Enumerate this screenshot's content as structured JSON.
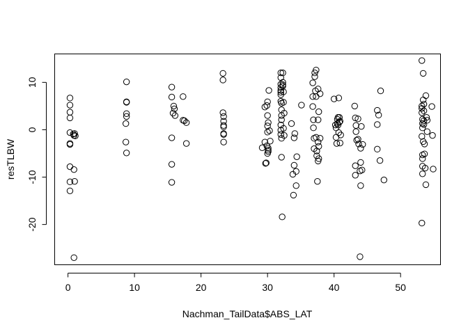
{
  "chart_data": {
    "type": "scatter",
    "title": "",
    "xlabel": "Nachman_TailData$ABS_LAT",
    "ylabel": "resTLBW",
    "xlim": [
      -2,
      56
    ],
    "ylim": [
      -28.5,
      16
    ],
    "xticks": [
      0,
      10,
      20,
      30,
      40,
      50
    ],
    "yticks": [
      -20,
      -10,
      0,
      10
    ],
    "grid": false,
    "legend": "none",
    "marker": "open-circle",
    "points": [
      [
        0.3,
        6.7
      ],
      [
        0.3,
        5.2
      ],
      [
        0.3,
        3.7
      ],
      [
        0.3,
        2.5
      ],
      [
        0.3,
        -0.6
      ],
      [
        0.3,
        -2.9
      ],
      [
        0.3,
        -3.1
      ],
      [
        0.3,
        -7.8
      ],
      [
        0.3,
        -11.0
      ],
      [
        0.3,
        -12.9
      ],
      [
        0.8,
        -0.9
      ],
      [
        0.9,
        -1.2
      ],
      [
        1.0,
        -0.8
      ],
      [
        1.1,
        -1.3
      ],
      [
        0.9,
        -8.4
      ],
      [
        1.0,
        -10.9
      ],
      [
        0.9,
        -27.0
      ],
      [
        8.8,
        10.1
      ],
      [
        8.8,
        5.8
      ],
      [
        8.8,
        5.9
      ],
      [
        8.8,
        3.4
      ],
      [
        8.8,
        2.8
      ],
      [
        8.7,
        1.3
      ],
      [
        8.7,
        -2.6
      ],
      [
        8.8,
        -4.9
      ],
      [
        15.6,
        9.0
      ],
      [
        15.6,
        6.9
      ],
      [
        15.9,
        5.0
      ],
      [
        16.0,
        4.4
      ],
      [
        15.8,
        3.5
      ],
      [
        16.1,
        3.0
      ],
      [
        15.6,
        -1.7
      ],
      [
        15.6,
        -7.3
      ],
      [
        15.6,
        -11.1
      ],
      [
        17.3,
        7.0
      ],
      [
        17.3,
        2.0
      ],
      [
        17.5,
        1.9
      ],
      [
        17.8,
        1.5
      ],
      [
        17.8,
        -2.9
      ],
      [
        23.3,
        11.9
      ],
      [
        23.3,
        10.5
      ],
      [
        23.3,
        3.6
      ],
      [
        23.4,
        2.8
      ],
      [
        23.4,
        1.8
      ],
      [
        23.4,
        0.9
      ],
      [
        23.4,
        0.6
      ],
      [
        23.4,
        -0.8
      ],
      [
        23.4,
        -1.0
      ],
      [
        23.4,
        -2.6
      ],
      [
        29.2,
        -3.8
      ],
      [
        29.6,
        4.8
      ],
      [
        29.6,
        -2.6
      ],
      [
        29.7,
        -7.1
      ],
      [
        29.8,
        -7.0
      ],
      [
        29.9,
        5.1
      ],
      [
        29.9,
        -3.4
      ],
      [
        30.0,
        5.9
      ],
      [
        30.0,
        3.0
      ],
      [
        30.1,
        1.5
      ],
      [
        30.0,
        0.8
      ],
      [
        30.0,
        -0.5
      ],
      [
        30.1,
        -3.9
      ],
      [
        30.1,
        -4.3
      ],
      [
        30.1,
        -4.6
      ],
      [
        30.2,
        8.3
      ],
      [
        30.3,
        -0.2
      ],
      [
        30.4,
        -2.4
      ],
      [
        30.0,
        -5.0
      ],
      [
        32.0,
        12.0
      ],
      [
        32.0,
        11.0
      ],
      [
        32.0,
        9.6
      ],
      [
        32.0,
        8.9
      ],
      [
        32.0,
        8.3
      ],
      [
        32.0,
        7.9
      ],
      [
        32.0,
        7.4
      ],
      [
        32.0,
        6.0
      ],
      [
        32.1,
        5.6
      ],
      [
        32.1,
        4.2
      ],
      [
        32.1,
        3.0
      ],
      [
        32.1,
        2.1
      ],
      [
        32.0,
        1.0
      ],
      [
        32.0,
        -0.1
      ],
      [
        32.0,
        -1.0
      ],
      [
        32.1,
        -1.8
      ],
      [
        32.1,
        -5.8
      ],
      [
        32.2,
        -18.4
      ],
      [
        32.3,
        12.0
      ],
      [
        32.3,
        10.0
      ],
      [
        32.3,
        9.5
      ],
      [
        32.3,
        9.2
      ],
      [
        32.4,
        8.0
      ],
      [
        32.4,
        5.8
      ],
      [
        32.4,
        0.3
      ],
      [
        32.5,
        -1.2
      ],
      [
        32.5,
        3.5
      ],
      [
        33.6,
        1.3
      ],
      [
        33.8,
        -9.4
      ],
      [
        33.9,
        -13.8
      ],
      [
        34.0,
        -7.5
      ],
      [
        34.0,
        -1.7
      ],
      [
        34.1,
        -0.8
      ],
      [
        34.3,
        -8.8
      ],
      [
        34.3,
        -11.8
      ],
      [
        34.4,
        -5.7
      ],
      [
        35.1,
        5.2
      ],
      [
        36.8,
        9.9
      ],
      [
        36.8,
        7.0
      ],
      [
        36.8,
        4.9
      ],
      [
        36.9,
        2.1
      ],
      [
        36.9,
        0.4
      ],
      [
        37.0,
        -1.8
      ],
      [
        37.0,
        -4.0
      ],
      [
        37.1,
        12.0
      ],
      [
        37.1,
        11.2
      ],
      [
        37.2,
        8.2
      ],
      [
        37.3,
        12.6
      ],
      [
        37.3,
        7.0
      ],
      [
        37.3,
        -1.6
      ],
      [
        37.4,
        -4.5
      ],
      [
        37.4,
        -5.5
      ],
      [
        37.5,
        -10.9
      ],
      [
        37.6,
        8.6
      ],
      [
        37.6,
        2.1
      ],
      [
        37.6,
        -2.6
      ],
      [
        37.7,
        3.8
      ],
      [
        37.7,
        -3.5
      ],
      [
        37.7,
        -6.1
      ],
      [
        37.6,
        -6.6
      ],
      [
        37.9,
        7.6
      ],
      [
        37.9,
        -1.8
      ],
      [
        40.0,
        6.5
      ],
      [
        40.2,
        1.0
      ],
      [
        40.3,
        0.4
      ],
      [
        40.3,
        -1.6
      ],
      [
        40.4,
        -2.9
      ],
      [
        40.5,
        1.3
      ],
      [
        40.5,
        2.2
      ],
      [
        40.6,
        2.6
      ],
      [
        40.6,
        1.0
      ],
      [
        40.7,
        6.7
      ],
      [
        40.7,
        -0.6
      ],
      [
        40.8,
        2.6
      ],
      [
        40.8,
        1.6
      ],
      [
        40.9,
        -2.8
      ],
      [
        40.9,
        1.8
      ],
      [
        41.0,
        -1.1
      ],
      [
        43.1,
        5.0
      ],
      [
        43.2,
        2.5
      ],
      [
        43.3,
        0.9
      ],
      [
        43.3,
        -0.4
      ],
      [
        43.4,
        -2.2
      ],
      [
        43.2,
        -7.6
      ],
      [
        43.2,
        -9.6
      ],
      [
        43.6,
        2.3
      ],
      [
        43.6,
        -2.0
      ],
      [
        43.7,
        -3.0
      ],
      [
        43.9,
        -8.7
      ],
      [
        44.0,
        -3.9
      ],
      [
        44.0,
        -6.9
      ],
      [
        44.0,
        -11.8
      ],
      [
        43.9,
        -26.8
      ],
      [
        44.2,
        -8.5
      ],
      [
        44.3,
        -3.1
      ],
      [
        44.1,
        0.7
      ],
      [
        46.5,
        4.1
      ],
      [
        46.5,
        1.1
      ],
      [
        46.5,
        -4.1
      ],
      [
        46.7,
        3.1
      ],
      [
        46.9,
        -6.5
      ],
      [
        47.0,
        8.2
      ],
      [
        47.5,
        -10.6
      ],
      [
        53.2,
        14.6
      ],
      [
        53.4,
        11.9
      ],
      [
        53.4,
        6.3
      ],
      [
        53.2,
        5.0
      ],
      [
        53.2,
        4.5
      ],
      [
        53.2,
        3.6
      ],
      [
        53.3,
        2.2
      ],
      [
        53.3,
        1.3
      ],
      [
        53.3,
        0.4
      ],
      [
        53.2,
        -1.4
      ],
      [
        53.4,
        -2.5
      ],
      [
        53.3,
        -5.3
      ],
      [
        53.3,
        -6.1
      ],
      [
        53.3,
        -7.7
      ],
      [
        53.3,
        -9.3
      ],
      [
        53.2,
        -19.7
      ],
      [
        53.5,
        5.4
      ],
      [
        53.5,
        4.0
      ],
      [
        53.5,
        1.9
      ],
      [
        53.5,
        1.1
      ],
      [
        53.6,
        -3.0
      ],
      [
        53.6,
        -5.1
      ],
      [
        53.7,
        -8.1
      ],
      [
        53.8,
        -11.6
      ],
      [
        53.8,
        7.2
      ],
      [
        53.9,
        2.6
      ],
      [
        54.0,
        -0.4
      ],
      [
        54.0,
        2.0
      ],
      [
        54.7,
        4.9
      ],
      [
        54.8,
        -1.2
      ],
      [
        54.9,
        -8.3
      ]
    ]
  }
}
